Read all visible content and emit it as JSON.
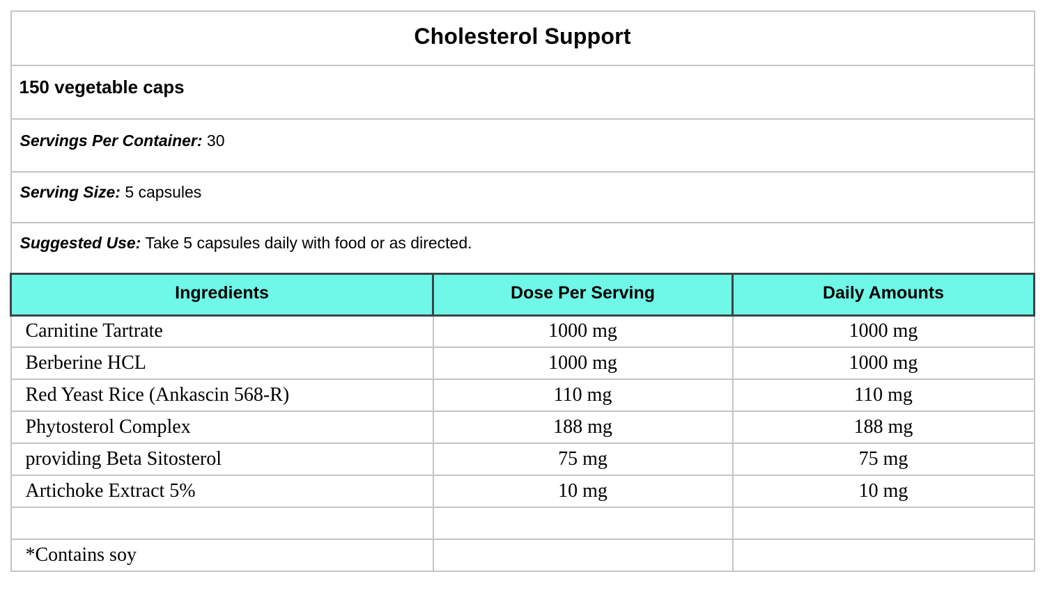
{
  "colors": {
    "header_bg": "#6FF7E8",
    "header_border": "#3D4246",
    "grid": "#C4C4C4"
  },
  "header": {
    "title": "Cholesterol Support",
    "subtitle": "150 vegetable caps"
  },
  "info": {
    "servings_label": "Servings Per Container:",
    "servings_value": "30",
    "serving_size_label": "Serving Size:",
    "serving_size_value": "5 capsules",
    "suggested_use_label": "Suggested Use:",
    "suggested_use_value": "Take 5 capsules daily with food or as directed."
  },
  "table": {
    "columns": [
      "Ingredients",
      "Dose Per Serving",
      "Daily Amounts"
    ],
    "rows": [
      {
        "ingredient": "Carnitine Tartrate",
        "dose": "1000 mg",
        "daily": "1000 mg"
      },
      {
        "ingredient": "Berberine HCL",
        "dose": "1000 mg",
        "daily": "1000 mg"
      },
      {
        "ingredient": "Red Yeast Rice (Ankascin 568-R)",
        "dose": "110 mg",
        "daily": "110 mg"
      },
      {
        "ingredient": "Phytosterol Complex",
        "dose": "188 mg",
        "daily": "188 mg"
      },
      {
        "ingredient": "providing Beta Sitosterol",
        "dose": "75 mg",
        "daily": "75 mg"
      },
      {
        "ingredient": "Artichoke Extract 5%",
        "dose": "10 mg",
        "daily": "10 mg"
      },
      {
        "ingredient": "",
        "dose": "",
        "daily": ""
      },
      {
        "ingredient": "*Contains soy",
        "dose": "",
        "daily": ""
      }
    ]
  }
}
